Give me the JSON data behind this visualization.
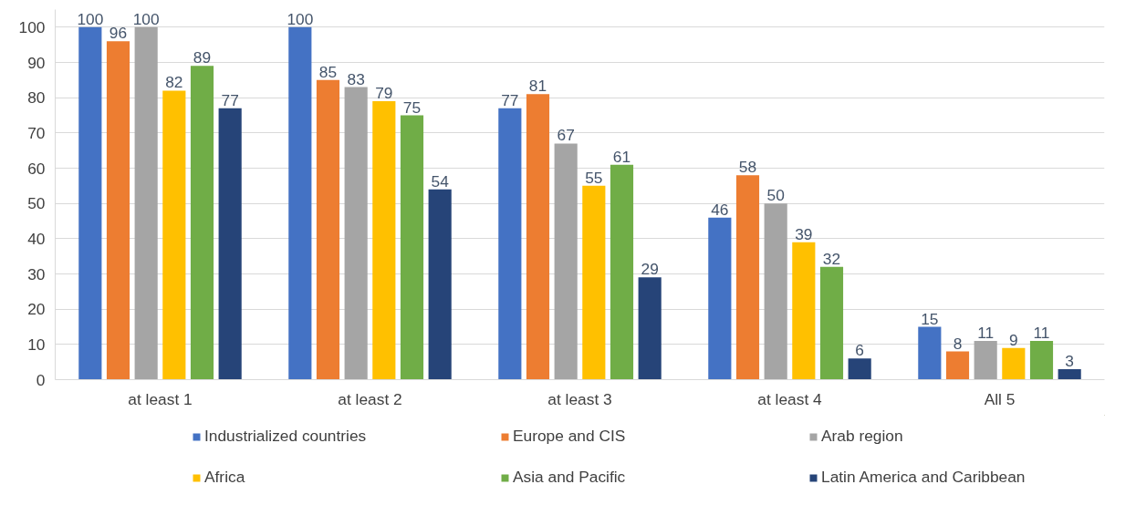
{
  "chart_data": {
    "type": "bar",
    "categories": [
      "at least 1",
      "at least 2",
      "at least 3",
      "at least 4",
      "All 5"
    ],
    "ylim": [
      0,
      105
    ],
    "yticks": [
      0,
      10,
      20,
      30,
      40,
      50,
      60,
      70,
      80,
      90,
      100
    ],
    "grid": "y",
    "legend": "bottom",
    "data_labels": true,
    "series": [
      {
        "name": "Industrialized countries",
        "color": "#4472c4",
        "values": [
          100,
          100,
          77,
          46,
          15
        ]
      },
      {
        "name": "Europe and CIS",
        "color": "#ed7d31",
        "values": [
          96,
          85,
          81,
          58,
          8
        ]
      },
      {
        "name": "Arab region",
        "color": "#a5a5a5",
        "values": [
          100,
          83,
          67,
          50,
          11
        ]
      },
      {
        "name": "Africa",
        "color": "#ffc000",
        "values": [
          82,
          79,
          55,
          39,
          9
        ]
      },
      {
        "name": "Asia and Pacific",
        "color": "#70ad47",
        "values": [
          89,
          75,
          61,
          32,
          11
        ]
      },
      {
        "name": "Latin America and Caribbean",
        "color": "#264478",
        "values": [
          77,
          54,
          29,
          6,
          3
        ]
      }
    ]
  }
}
